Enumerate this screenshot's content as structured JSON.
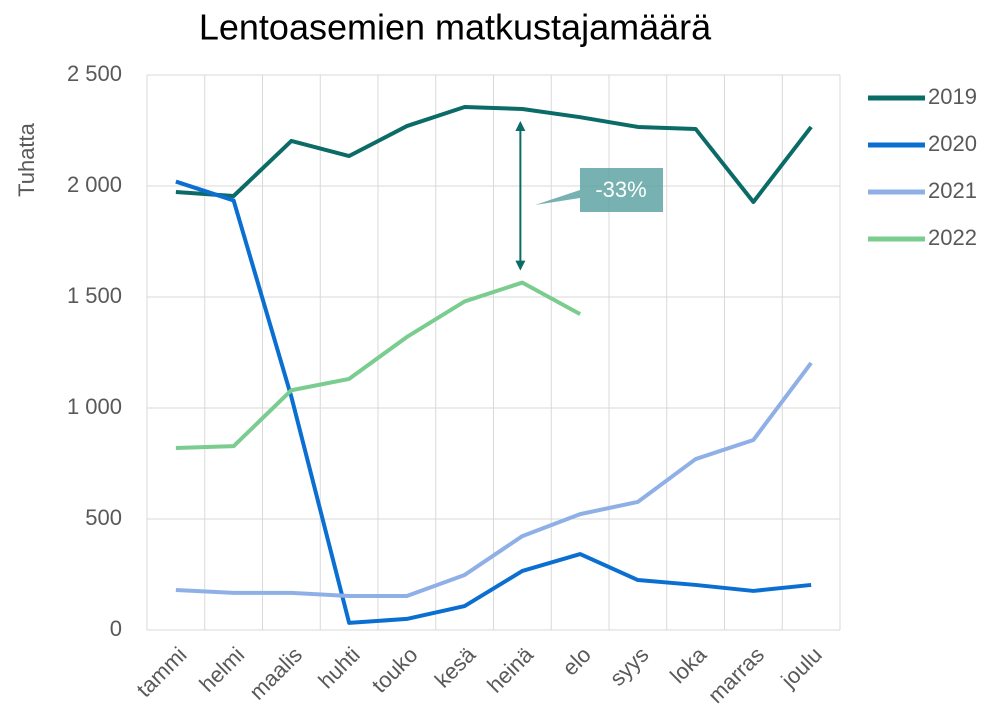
{
  "chart_data": {
    "type": "line",
    "title": "Lentoasemien matkustajamäärä",
    "y_label": "Tuhatta",
    "categories": [
      "tammi",
      "helmi",
      "maalis",
      "huhti",
      "touko",
      "kesä",
      "heinä",
      "elo",
      "syys",
      "loka",
      "marras",
      "joulu"
    ],
    "series": [
      {
        "name": "2019",
        "color": "#0b6b66",
        "values": [
          1973,
          1955,
          2203,
          2135,
          2270,
          2356,
          2347,
          2310,
          2266,
          2257,
          1928,
          2266
        ]
      },
      {
        "name": "2020",
        "color": "#0a6fd1",
        "values": [
          2020,
          1935,
          1050,
          32,
          50,
          108,
          266,
          342,
          225,
          203,
          176,
          203
        ]
      },
      {
        "name": "2021",
        "color": "#8fb0e6",
        "values": [
          180,
          167,
          167,
          153,
          153,
          248,
          423,
          522,
          577,
          770,
          856,
          1203
        ]
      },
      {
        "name": "2022",
        "color": "#7acc8f",
        "values": [
          820,
          828,
          1080,
          1131,
          1320,
          1480,
          1565,
          1423,
          null,
          null,
          null,
          null
        ]
      }
    ],
    "ylim": [
      0,
      2500
    ],
    "yticks": [
      0,
      500,
      {
        "value": 1000,
        "label": "1 000"
      },
      {
        "value": 1500,
        "label": "1 500"
      },
      {
        "value": 2000,
        "label": "2 000"
      },
      {
        "value": 2500,
        "label": "2 500"
      }
    ],
    "grid": true,
    "legend": "right",
    "annotation": "-33%"
  }
}
